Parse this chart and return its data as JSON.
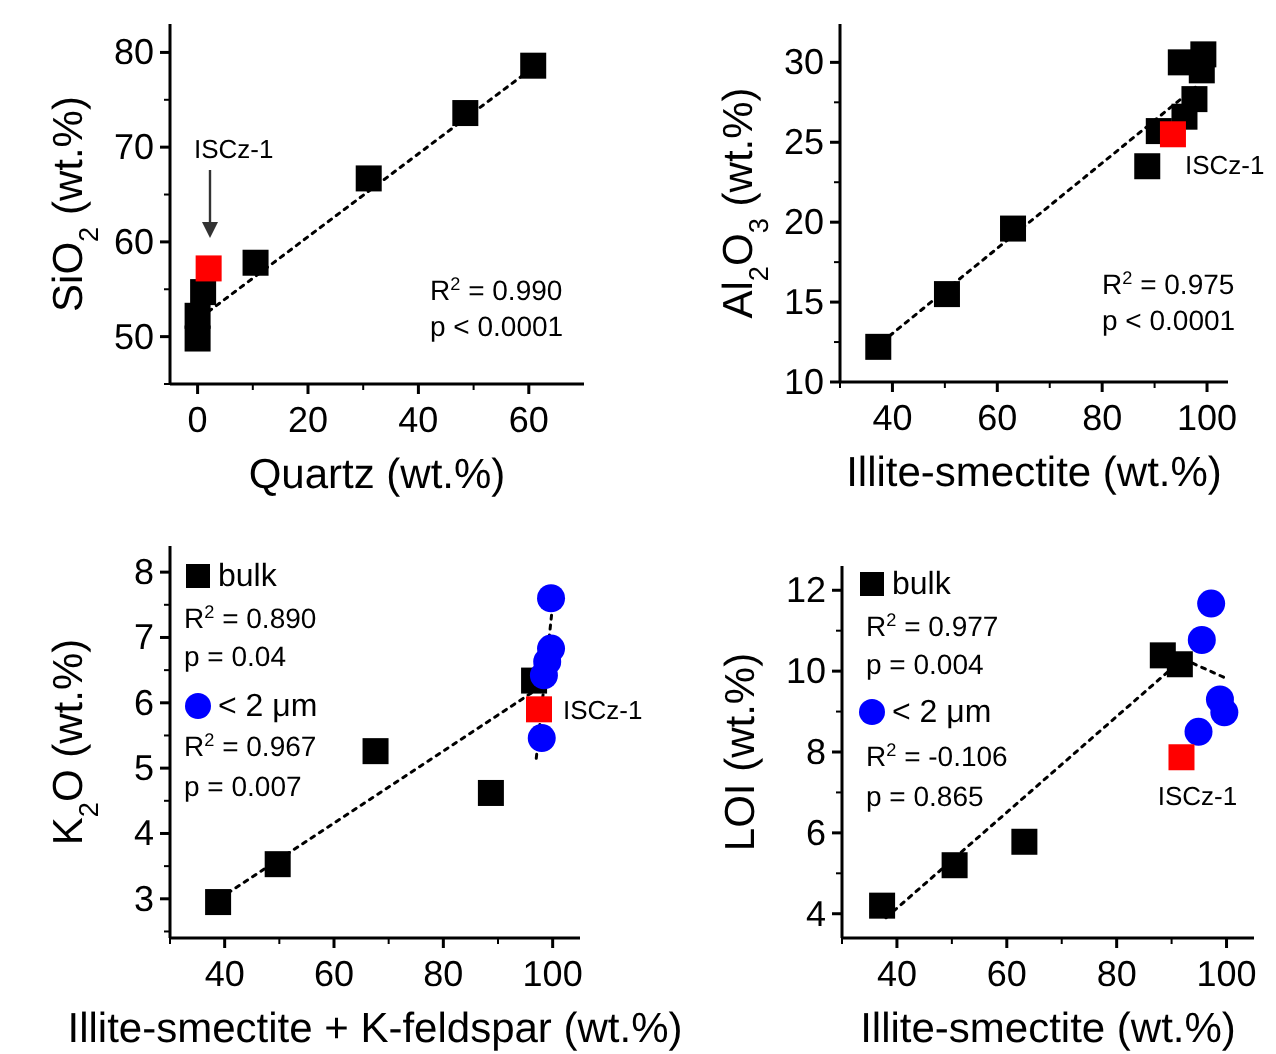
{
  "chart_data": [
    {
      "type": "scatter",
      "xlabel": "Quartz (wt.%)",
      "ylabel": "SiO$_{2}$ (wt.%)",
      "xlim": [
        -5,
        70
      ],
      "ylim": [
        45,
        83
      ],
      "xticks": [
        0,
        20,
        40,
        60
      ],
      "yticks": [
        50,
        60,
        70,
        80
      ],
      "legend": false,
      "grid": false,
      "series": [
        {
          "color": "#000000",
          "marker": "square",
          "x": [
            0,
            0,
            1,
            10.5,
            31,
            48.5,
            60.8
          ],
          "values": [
            49.8,
            52.2,
            54.7,
            57.8,
            66.7,
            73.6,
            78.6
          ]
        },
        {
          "color": "#ff0000",
          "marker": "square",
          "x": [
            2
          ],
          "values": [
            57.2
          ]
        },
        {
          "type": "line",
          "color": "#000000",
          "marker": "none",
          "line_style": "dotted",
          "x": [
            0.5,
            61
          ],
          "values": [
            52,
            78.5
          ]
        }
      ],
      "annotations": [
        "ISCz-1",
        "R$^{2}$ = 0.990",
        "p < 0.0001"
      ]
    },
    {
      "type": "scatter",
      "xlabel": "Illite-smectite (wt.%)",
      "ylabel": "Al$_{2}$O$_{3}$ (wt.%)",
      "xlim": [
        30,
        104
      ],
      "ylim": [
        10,
        32.4
      ],
      "xticks": [
        40,
        60,
        80,
        100
      ],
      "yticks": [
        10,
        15,
        20,
        25,
        30
      ],
      "legend": false,
      "grid": false,
      "series": [
        {
          "color": "#000000",
          "marker": "square",
          "x": [
            37.3,
            50.4,
            63,
            88.6,
            90.8,
            95.7,
            97.6,
            95,
            99,
            99.3
          ],
          "values": [
            12.2,
            15.5,
            19.6,
            23.5,
            25.7,
            26.6,
            27.7,
            30,
            29.5,
            30.5
          ]
        },
        {
          "color": "#ff0000",
          "marker": "square",
          "x": [
            93.5
          ],
          "values": [
            25.5
          ]
        },
        {
          "type": "line",
          "color": "#000000",
          "marker": "none",
          "line_style": "dotted",
          "x": [
            38,
            98
          ],
          "values": [
            12.5,
            28.5
          ]
        }
      ],
      "annotations": [
        {
          "text": "ISCz-1",
          "x": 93.5,
          "y": 25.5
        },
        "R$^{2}$ = 0.975",
        "p < 0.0001"
      ]
    },
    {
      "type": "scatter",
      "xlabel": "Illite-smectite + K-feldspar (wt.%)",
      "ylabel": "K$_{2}$O (wt.%)",
      "xlim": [
        30,
        105
      ],
      "ylim": [
        2.4,
        8.4
      ],
      "xticks": [
        40,
        60,
        80,
        100
      ],
      "yticks": [
        3,
        4,
        5,
        6,
        7,
        8
      ],
      "legend": "top left",
      "grid": false,
      "series": [
        {
          "name": "bulk",
          "color": "#000000",
          "marker": "square",
          "x": [
            38.8,
            49.7,
            67.6,
            88.7,
            96.6
          ],
          "values": [
            2.95,
            3.53,
            5.26,
            4.62,
            6.34
          ]
        },
        {
          "name": "< 2 μm",
          "color": "#0000ff",
          "marker": "circle",
          "x": [
            99.7,
            99.7,
            99,
            98.4,
            98
          ],
          "values": [
            7.6,
            6.83,
            6.63,
            6.42,
            5.46
          ]
        },
        {
          "color": "#ff0000",
          "marker": "square",
          "x": [
            97.5
          ],
          "values": [
            5.9
          ]
        },
        {
          "type": "line",
          "color": "#000000",
          "marker": "none",
          "line_style": "dotted",
          "x": [
            39,
            97
          ],
          "values": [
            3,
            6.2
          ]
        },
        {
          "type": "line",
          "color": "#000000",
          "marker": "none",
          "line_style": "dotted",
          "x": [
            97,
            100
          ],
          "values": [
            5.15,
            7.5
          ]
        }
      ],
      "annotations": [
        {
          "text": "ISCz-1",
          "x": 97.5,
          "y": 5.9
        },
        "R$^{2}$ = 0.890",
        "p = 0.04",
        "R$^{2}$ = 0.967",
        "p = 0.007"
      ]
    },
    {
      "type": "scatter",
      "xlabel": "Illite-smectite (wt.%)",
      "ylabel": "LOI (wt.%)",
      "xlim": [
        30,
        105
      ],
      "ylim": [
        3.4,
        12.6
      ],
      "xticks": [
        40,
        60,
        80,
        100
      ],
      "yticks": [
        4,
        6,
        8,
        10,
        12
      ],
      "legend": "top left",
      "grid": false,
      "series": [
        {
          "name": "bulk",
          "color": "#000000",
          "marker": "square",
          "x": [
            37.3,
            50.5,
            63.2,
            88.4,
            91.5
          ],
          "values": [
            4.2,
            5.2,
            5.78,
            10.39,
            10.17
          ]
        },
        {
          "name": "< 2 μm",
          "color": "#0000ff",
          "marker": "circle",
          "x": [
            97.2,
            95.5,
            98.8,
            99.6,
            94.9
          ],
          "values": [
            11.67,
            10.77,
            9.3,
            8.98,
            8.5
          ]
        },
        {
          "color": "#ff0000",
          "marker": "square",
          "x": [
            91.8
          ],
          "values": [
            7.87
          ]
        },
        {
          "type": "line",
          "color": "#000000",
          "marker": "none",
          "line_style": "dotted",
          "x": [
            38,
            92
          ],
          "values": [
            3.9,
            10.3
          ]
        },
        {
          "type": "line",
          "color": "#000000",
          "marker": "none",
          "line_style": "dotted",
          "x": [
            90.5,
            100.3
          ],
          "values": [
            10.4,
            9.8
          ]
        }
      ],
      "annotations": [
        {
          "text": "ISCz-1",
          "x": 91.8,
          "y": 7.87
        },
        "R$^{2}$ = 0.977",
        "p = 0.004",
        "R$^{2}$ = -0.106",
        "p = 0.865"
      ]
    }
  ]
}
